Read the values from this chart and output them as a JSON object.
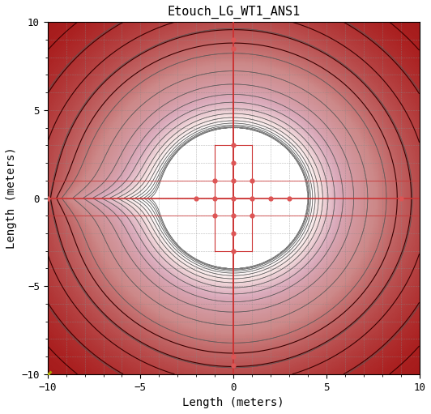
{
  "title": "Etouch_LG_WT1_ANS1",
  "xlabel": "Length (meters)",
  "ylabel": "Length (meters)",
  "xlim": [
    -10,
    10
  ],
  "ylim": [
    -10,
    10
  ],
  "xticks": [
    -10,
    -5,
    0,
    5,
    10
  ],
  "yticks": [
    -10,
    -5,
    0,
    5,
    10
  ],
  "red_line_color": "#CC3333",
  "dot_color": "#DD5555",
  "cross_marker_color": "#AAAA00",
  "title_fontsize": 11,
  "label_fontsize": 10,
  "grid_color": "#AAAAAA",
  "font_family": "monospace"
}
